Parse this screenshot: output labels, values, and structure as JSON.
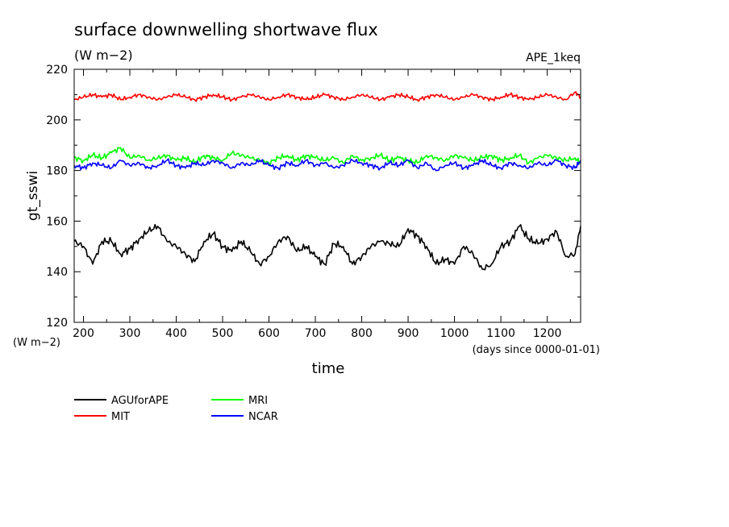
{
  "chart_data": {
    "type": "line",
    "title": "surface downwelling shortwave flux",
    "subtitle": "(W m−2)",
    "tag": "APE_1keq",
    "xlabel": "time",
    "xunits": "(days since 0000-01-01)",
    "ylabel": "gt_sswi",
    "yunits": "(W m−2)",
    "xlim": [
      180,
      1272
    ],
    "ylim": [
      120,
      220
    ],
    "xticks": [
      200,
      300,
      400,
      500,
      600,
      700,
      800,
      900,
      1000,
      1100,
      1200
    ],
    "yticks": [
      120,
      140,
      160,
      180,
      200,
      220
    ],
    "grid": false,
    "legend_position": "bottom-left",
    "series": [
      {
        "name": "AGUforAPE",
        "color": "#000000",
        "x": [
          180,
          200,
          220,
          240,
          260,
          280,
          300,
          320,
          340,
          360,
          380,
          400,
          420,
          440,
          460,
          480,
          500,
          520,
          540,
          560,
          580,
          600,
          620,
          640,
          660,
          680,
          700,
          720,
          740,
          760,
          780,
          800,
          820,
          840,
          860,
          880,
          900,
          920,
          940,
          960,
          980,
          1000,
          1020,
          1040,
          1060,
          1080,
          1100,
          1120,
          1140,
          1160,
          1180,
          1200,
          1220,
          1240,
          1260,
          1272
        ],
        "y": [
          152,
          150,
          143,
          152,
          152,
          147,
          149,
          153,
          156,
          158,
          152,
          150,
          147,
          144,
          152,
          155,
          150,
          148,
          152,
          148,
          143,
          146,
          152,
          154,
          148,
          150,
          146,
          143,
          151,
          150,
          143,
          146,
          150,
          152,
          151,
          150,
          157,
          154,
          150,
          143,
          145,
          143,
          150,
          147,
          141,
          143,
          150,
          152,
          158,
          153,
          151,
          153,
          156,
          146,
          147,
          158
        ]
      },
      {
        "name": "MIT",
        "color": "#ff0000",
        "x": [
          180,
          200,
          220,
          240,
          260,
          280,
          300,
          320,
          340,
          360,
          380,
          400,
          420,
          440,
          460,
          480,
          500,
          520,
          540,
          560,
          580,
          600,
          620,
          640,
          660,
          680,
          700,
          720,
          740,
          760,
          780,
          800,
          820,
          840,
          860,
          880,
          900,
          920,
          940,
          960,
          980,
          1000,
          1020,
          1040,
          1060,
          1080,
          1100,
          1120,
          1140,
          1160,
          1180,
          1200,
          1220,
          1240,
          1260,
          1272
        ],
        "y": [
          208,
          209,
          210,
          209,
          210,
          208,
          209,
          210,
          209,
          208,
          209,
          210,
          209,
          208,
          209,
          210,
          209,
          208,
          209,
          210,
          209,
          208,
          209,
          210,
          209,
          208,
          209,
          210,
          209,
          208,
          209,
          210,
          209,
          208,
          209,
          210,
          209,
          208,
          209,
          210,
          209,
          208,
          209,
          210,
          209,
          208,
          209,
          210,
          209,
          208,
          209,
          210,
          209,
          208,
          211,
          209
        ]
      },
      {
        "name": "MRI",
        "color": "#00ff00",
        "x": [
          180,
          200,
          220,
          240,
          260,
          280,
          300,
          320,
          340,
          360,
          380,
          400,
          420,
          440,
          460,
          480,
          500,
          520,
          540,
          560,
          580,
          600,
          620,
          640,
          660,
          680,
          700,
          720,
          740,
          760,
          780,
          800,
          820,
          840,
          860,
          880,
          900,
          920,
          940,
          960,
          980,
          1000,
          1020,
          1040,
          1060,
          1080,
          1100,
          1120,
          1140,
          1160,
          1180,
          1200,
          1220,
          1240,
          1260,
          1272
        ],
        "y": [
          185,
          184,
          186,
          185,
          187,
          189,
          185,
          186,
          184,
          185,
          186,
          184,
          185,
          183,
          186,
          185,
          184,
          187,
          186,
          185,
          184,
          183,
          185,
          186,
          184,
          186,
          185,
          184,
          185,
          183,
          186,
          184,
          185,
          186,
          184,
          185,
          184,
          183,
          186,
          185,
          184,
          186,
          185,
          184,
          185,
          186,
          184,
          185,
          186,
          183,
          185,
          186,
          185,
          184,
          185,
          183
        ]
      },
      {
        "name": "NCAR",
        "color": "#0000ff",
        "x": [
          180,
          200,
          220,
          240,
          260,
          280,
          300,
          320,
          340,
          360,
          380,
          400,
          420,
          440,
          460,
          480,
          500,
          520,
          540,
          560,
          580,
          600,
          620,
          640,
          660,
          680,
          700,
          720,
          740,
          760,
          780,
          800,
          820,
          840,
          860,
          880,
          900,
          920,
          940,
          960,
          980,
          1000,
          1020,
          1040,
          1060,
          1080,
          1100,
          1120,
          1140,
          1160,
          1180,
          1200,
          1220,
          1240,
          1260,
          1272
        ],
        "y": [
          182,
          181,
          183,
          182,
          181,
          184,
          182,
          183,
          181,
          182,
          184,
          182,
          181,
          183,
          182,
          184,
          183,
          181,
          183,
          182,
          184,
          182,
          181,
          183,
          182,
          184,
          182,
          183,
          181,
          182,
          184,
          183,
          182,
          181,
          183,
          182,
          184,
          181,
          183,
          180,
          182,
          183,
          181,
          182,
          184,
          182,
          181,
          183,
          182,
          181,
          183,
          182,
          184,
          182,
          181,
          184
        ]
      }
    ]
  }
}
